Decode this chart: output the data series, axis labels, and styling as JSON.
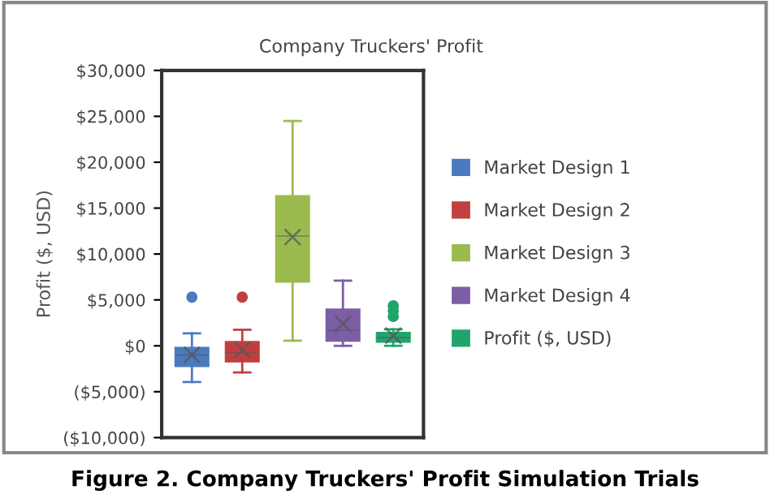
{
  "chart_data": {
    "type": "box",
    "title": "Company Truckers' Profit",
    "ylabel": "Profit ($, USD)",
    "categories": [
      null,
      null,
      null,
      null,
      null
    ],
    "series": [
      {
        "name": "Market Design 1",
        "color": "#4a7bc0",
        "boxes": [
          {
            "low": -3950,
            "q1": -2200,
            "median": -1000,
            "q3": -230,
            "high": 1350,
            "mean": -1000,
            "outliers": [
              5300
            ]
          },
          null,
          null,
          null,
          null
        ]
      },
      {
        "name": "Market Design 2",
        "color": "#c0403f",
        "boxes": [
          null,
          {
            "low": -2900,
            "q1": -1700,
            "median": -730,
            "q3": 400,
            "high": 1750,
            "mean": -450,
            "outliers": [
              5300
            ]
          },
          null,
          null,
          null
        ]
      },
      {
        "name": "Market Design 3",
        "color": "#9bbb4f",
        "boxes": [
          null,
          null,
          {
            "low": 560,
            "q1": 7000,
            "median": 11950,
            "q3": 16300,
            "high": 24500,
            "mean": 11850
          },
          null,
          null
        ]
      },
      {
        "name": "Market Design 4",
        "color": "#7b5ea6",
        "boxes": [
          null,
          null,
          null,
          {
            "low": 0,
            "q1": 560,
            "median": 1700,
            "q3": 3950,
            "high": 7100,
            "mean": 2400
          },
          null
        ]
      },
      {
        "name": "Profit ($, USD)",
        "color": "#1fa56c",
        "boxes": [
          null,
          null,
          null,
          null,
          {
            "low": 0,
            "q1": 450,
            "median": 900,
            "q3": 1400,
            "high": 1800,
            "mean": 1100,
            "outliers": [
              3200,
              3800,
              4350
            ]
          }
        ]
      }
    ],
    "ylim": [
      -10000,
      30000
    ],
    "yticks": [
      {
        "value": -10000,
        "label": "($10,000)"
      },
      {
        "value": -5000,
        "label": "($5,000)"
      },
      {
        "value": 0,
        "label": "$0"
      },
      {
        "value": 5000,
        "label": "$5,000"
      },
      {
        "value": 10000,
        "label": "$10,000"
      },
      {
        "value": 15000,
        "label": "$15,000"
      },
      {
        "value": 20000,
        "label": "$20,000"
      },
      {
        "value": 25000,
        "label": "$25,000"
      },
      {
        "value": 30000,
        "label": "$30,000"
      }
    ],
    "legend": "right",
    "grid": false,
    "annotations": [
      "Figure 2. Company Truckers' Profit Simulation Trials"
    ]
  }
}
